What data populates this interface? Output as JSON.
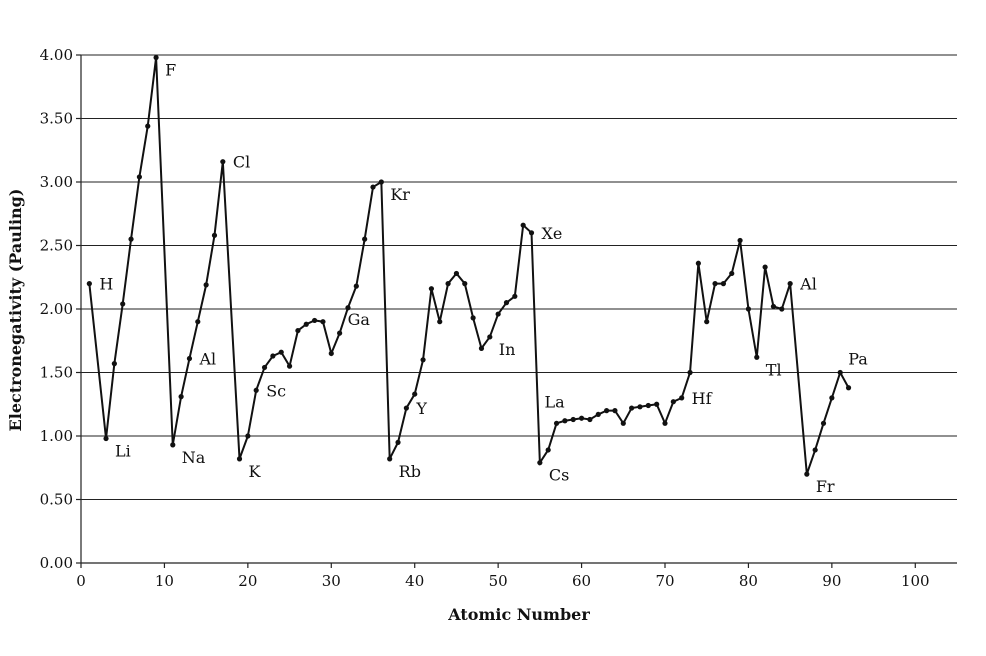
{
  "chart_data": {
    "type": "line",
    "title": "",
    "xlabel": "Atomic Number",
    "ylabel": "Electronegativity (Pauling)",
    "xlim": [
      0,
      105
    ],
    "ylim": [
      0,
      4
    ],
    "xticks": [
      0,
      10,
      20,
      30,
      40,
      50,
      60,
      70,
      80,
      90,
      100
    ],
    "yticks": [
      0.0,
      0.5,
      1.0,
      1.5,
      2.0,
      2.5,
      3.0,
      3.5,
      4.0
    ],
    "xtick_labels": [
      "0",
      "10",
      "20",
      "30",
      "40",
      "50",
      "60",
      "70",
      "80",
      "90",
      "100"
    ],
    "ytick_labels": [
      "0.00",
      "0.50",
      "1.00",
      "1.50",
      "2.00",
      "2.50",
      "3.00",
      "3.50",
      "4.00"
    ],
    "grid": "horizontal",
    "series": [
      {
        "x": [
          1,
          3,
          4,
          5,
          6,
          7,
          8,
          9,
          11,
          12,
          13,
          14,
          15,
          16,
          17,
          19,
          20,
          21,
          22,
          23,
          24,
          25,
          26,
          27,
          28,
          29,
          30,
          31,
          32,
          33,
          34,
          35,
          36,
          37,
          38,
          39,
          40,
          41,
          42,
          43,
          44,
          45,
          46,
          47,
          48,
          49,
          50,
          51,
          52,
          53,
          54,
          55,
          56,
          57,
          58,
          59,
          60,
          61,
          62,
          63,
          64,
          65,
          66,
          67,
          68,
          69,
          70,
          71,
          72,
          73,
          74,
          75,
          76,
          77,
          78,
          79,
          80,
          81,
          82,
          83,
          84,
          85,
          87,
          88,
          89,
          90,
          91,
          92
        ],
        "values": [
          2.2,
          0.98,
          1.57,
          2.04,
          2.55,
          3.04,
          3.44,
          3.98,
          0.93,
          1.31,
          1.61,
          1.9,
          2.19,
          2.58,
          3.16,
          0.82,
          1.0,
          1.36,
          1.54,
          1.63,
          1.66,
          1.55,
          1.83,
          1.88,
          1.91,
          1.9,
          1.65,
          1.81,
          2.01,
          2.18,
          2.55,
          2.96,
          3.0,
          0.82,
          0.95,
          1.22,
          1.33,
          1.6,
          2.16,
          1.9,
          2.2,
          2.28,
          2.2,
          1.93,
          1.69,
          1.78,
          1.96,
          2.05,
          2.1,
          2.66,
          2.6,
          0.79,
          0.89,
          1.1,
          1.12,
          1.13,
          1.14,
          1.13,
          1.17,
          1.2,
          1.2,
          1.1,
          1.22,
          1.23,
          1.24,
          1.25,
          1.1,
          1.27,
          1.3,
          1.5,
          2.36,
          1.9,
          2.2,
          2.2,
          2.28,
          2.54,
          2.0,
          1.62,
          2.33,
          2.02,
          2.0,
          2.2,
          0.7,
          0.89,
          1.1,
          1.3,
          1.5,
          1.38
        ]
      }
    ],
    "annotations": [
      {
        "text": "H",
        "x": 1,
        "y": 2.2,
        "pos": "right"
      },
      {
        "text": "Li",
        "x": 3,
        "y": 0.98,
        "pos": "below-right"
      },
      {
        "text": "F",
        "x": 9,
        "y": 3.98,
        "pos": "below-right"
      },
      {
        "text": "Na",
        "x": 11,
        "y": 0.93,
        "pos": "below-right"
      },
      {
        "text": "Al",
        "x": 13,
        "y": 1.61,
        "pos": "right"
      },
      {
        "text": "Cl",
        "x": 17,
        "y": 3.16,
        "pos": "right"
      },
      {
        "text": "K",
        "x": 19,
        "y": 0.82,
        "pos": "below-right"
      },
      {
        "text": "Sc",
        "x": 21,
        "y": 1.36,
        "pos": "right"
      },
      {
        "text": "Ga",
        "x": 31,
        "y": 1.81,
        "pos": "above-right"
      },
      {
        "text": "Kr",
        "x": 36,
        "y": 3.0,
        "pos": "below-right"
      },
      {
        "text": "Rb",
        "x": 37,
        "y": 0.82,
        "pos": "below-right"
      },
      {
        "text": "Y",
        "x": 39,
        "y": 1.22,
        "pos": "right"
      },
      {
        "text": "In",
        "x": 49,
        "y": 1.78,
        "pos": "below-right"
      },
      {
        "text": "Xe",
        "x": 54,
        "y": 2.6,
        "pos": "right"
      },
      {
        "text": "Cs",
        "x": 55,
        "y": 0.79,
        "pos": "below-right"
      },
      {
        "text": "La",
        "x": 57,
        "y": 1.1,
        "pos": "above-left"
      },
      {
        "text": "Hf",
        "x": 72,
        "y": 1.3,
        "pos": "right"
      },
      {
        "text": "Tl",
        "x": 81,
        "y": 1.62,
        "pos": "below-right"
      },
      {
        "text": "Al",
        "x": 85,
        "y": 2.2,
        "pos": "right"
      },
      {
        "text": "Fr",
        "x": 87,
        "y": 0.7,
        "pos": "below-right"
      },
      {
        "text": "Pa",
        "x": 91,
        "y": 1.5,
        "pos": "above-right"
      }
    ]
  }
}
